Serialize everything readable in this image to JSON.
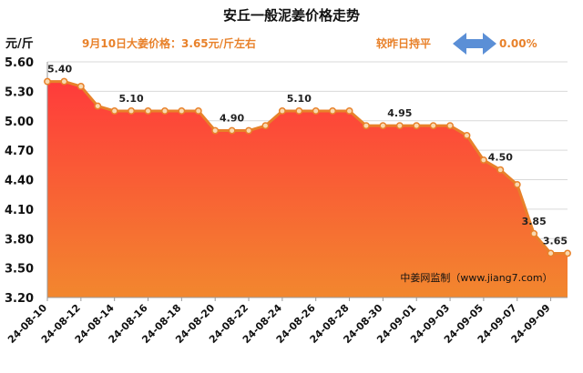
{
  "chart_data": {
    "type": "area",
    "title": "安丘一般泥姜价格走势",
    "subtitle": "9月10日大姜价格：3.65元/斤左右",
    "change_text": "较昨日持平",
    "change_value": "0.00%",
    "ylabel": "元/斤",
    "ylim": [
      3.2,
      5.6
    ],
    "yticks": [
      "5.60",
      "5.30",
      "5.00",
      "4.70",
      "4.40",
      "4.10",
      "3.80",
      "3.50",
      "3.20"
    ],
    "x": [
      "24-08-10",
      "24-08-11",
      "24-08-12",
      "24-08-13",
      "24-08-14",
      "24-08-15",
      "24-08-16",
      "24-08-17",
      "24-08-18",
      "24-08-19",
      "24-08-20",
      "24-08-21",
      "24-08-22",
      "24-08-23",
      "24-08-24",
      "24-08-25",
      "24-08-26",
      "24-08-27",
      "24-08-28",
      "24-08-29",
      "24-08-30",
      "24-08-31",
      "24-09-01",
      "24-09-02",
      "24-09-03",
      "24-09-04",
      "24-09-05",
      "24-09-06",
      "24-09-07",
      "24-09-08",
      "24-09-09",
      "24-09-10"
    ],
    "xtick_labels": [
      "24-08-10",
      "24-08-12",
      "24-08-14",
      "24-08-16",
      "24-08-18",
      "24-08-20",
      "24-08-22",
      "24-08-24",
      "24-08-26",
      "24-08-28",
      "24-08-30",
      "24-09-01",
      "24-09-03",
      "24-09-05",
      "24-09-07",
      "24-09-09"
    ],
    "values": [
      5.4,
      5.4,
      5.35,
      5.15,
      5.1,
      5.1,
      5.1,
      5.1,
      5.1,
      5.1,
      4.9,
      4.9,
      4.9,
      4.95,
      5.1,
      5.1,
      5.1,
      5.1,
      5.1,
      4.95,
      4.95,
      4.95,
      4.95,
      4.95,
      4.95,
      4.85,
      4.6,
      4.5,
      4.35,
      3.85,
      3.65,
      3.65
    ],
    "data_labels": [
      {
        "index": 0,
        "text": "5.40"
      },
      {
        "index": 5,
        "text": "5.10"
      },
      {
        "index": 11,
        "text": "4.90"
      },
      {
        "index": 15,
        "text": "5.10"
      },
      {
        "index": 21,
        "text": "4.95"
      },
      {
        "index": 27,
        "text": "4.50"
      },
      {
        "index": 29,
        "text": "3.85"
      },
      {
        "index": 31,
        "text": "3.65"
      }
    ],
    "watermark": "中姜网监制（www.jiang7.com）",
    "colors": {
      "line": "#e8812a",
      "fill_top": "#ff3b3b",
      "fill_bottom": "#f2872e",
      "marker_fill": "#f9d9b0",
      "arrow": "#5b8fd6"
    }
  }
}
